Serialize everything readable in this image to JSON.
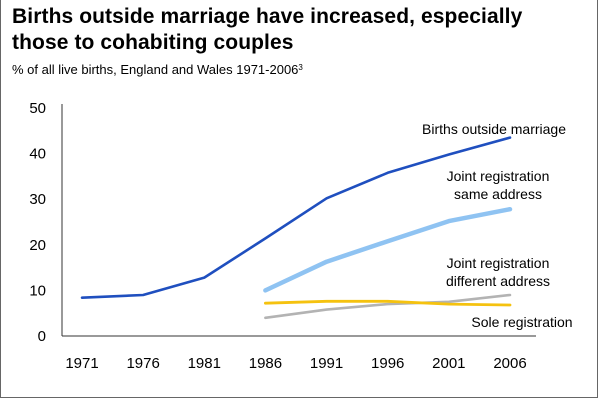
{
  "title_line1": "Births outside marriage have increased, especially",
  "title_line2": "those to cohabiting couples",
  "subtitle": "% of all live births, England and Wales 1971-2006",
  "subtitle_footnote": "3",
  "chart_data": {
    "type": "line",
    "x": [
      1971,
      1976,
      1981,
      1986,
      1991,
      1996,
      2001,
      2006
    ],
    "xlabel": "",
    "ylabel": "",
    "ylim": [
      0,
      50
    ],
    "yticks": [
      0,
      10,
      20,
      30,
      40,
      50
    ],
    "grid": false,
    "legend": "inline labels",
    "series": [
      {
        "name": "Births outside marriage",
        "color": "#1f4fbf",
        "x": [
          1971,
          1976,
          1981,
          1986,
          1991,
          1996,
          2001,
          2006
        ],
        "values": [
          8.4,
          9.0,
          12.8,
          21.4,
          30.2,
          35.8,
          39.8,
          43.5
        ],
        "label_lines": [
          "Births outside marriage"
        ]
      },
      {
        "name": "Joint registration same address",
        "color": "#8fc3f2",
        "x": [
          1986,
          1991,
          1996,
          2001,
          2006
        ],
        "values": [
          10.0,
          16.3,
          20.8,
          25.2,
          27.8
        ],
        "label_lines": [
          "Joint registration",
          "same address"
        ]
      },
      {
        "name": "Joint registration different address",
        "color": "#b3b3b3",
        "x": [
          1986,
          1991,
          1996,
          2001,
          2006
        ],
        "values": [
          4.0,
          5.8,
          7.0,
          7.5,
          9.0
        ],
        "label_lines": [
          "Joint registration",
          "different address"
        ]
      },
      {
        "name": "Sole registration",
        "color": "#f5c20f",
        "x": [
          1986,
          1991,
          1996,
          2001,
          2006
        ],
        "values": [
          7.2,
          7.6,
          7.6,
          7.0,
          6.8
        ],
        "label_lines": [
          "Sole registration"
        ]
      }
    ]
  }
}
